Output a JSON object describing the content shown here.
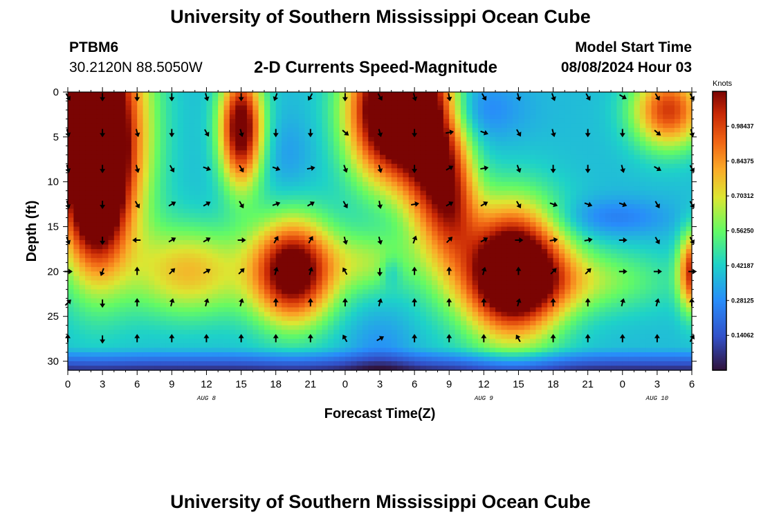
{
  "header": {
    "title": "University of Southern Mississippi Ocean Cube",
    "station_id": "PTBM6",
    "station_coords": "30.2120N  88.5050W",
    "subtitle": "2-D Currents Speed-Magnitude",
    "model_start_label": "Model Start Time",
    "model_start_value": "08/08/2024 Hour 03"
  },
  "footer": {
    "title": "University of Southern Mississippi Ocean Cube"
  },
  "chart_data": {
    "type": "heatmap",
    "xlabel": "Forecast Time(Z)",
    "ylabel": "Depth (ft)",
    "x_tick_labels": [
      "0",
      "3",
      "6",
      "9",
      "12",
      "15",
      "18",
      "21",
      "0",
      "3",
      "6",
      "9",
      "12",
      "15",
      "18",
      "21",
      "0",
      "3",
      "6"
    ],
    "x_range_hours": [
      0,
      54
    ],
    "date_labels": [
      {
        "text": "AUG 8",
        "at_hour": 12
      },
      {
        "text": "AUG 9",
        "at_hour": 36
      },
      {
        "text": "AUG 10",
        "at_hour": 51
      }
    ],
    "y_ticks": [
      0,
      5,
      10,
      15,
      20,
      25,
      30
    ],
    "ylim": [
      0,
      31
    ],
    "colorbar": {
      "title": "Knots",
      "tick_labels": [
        "0.98437",
        "0.84375",
        "0.70312",
        "0.56250",
        "0.42187",
        "0.28125",
        "0.14062"
      ],
      "range": [
        0,
        1.125
      ]
    },
    "speed_hotspots": [
      {
        "t": 2.5,
        "d": 4,
        "sx": 2.8,
        "sy": 9,
        "v": 0.95
      },
      {
        "t": 2.5,
        "d": 12,
        "sx": 1.8,
        "sy": 6,
        "v": 0.45
      },
      {
        "t": 15,
        "d": 4,
        "sx": 1.3,
        "sy": 4.5,
        "v": 0.75
      },
      {
        "t": 19.5,
        "d": 20,
        "sx": 2.5,
        "sy": 4,
        "v": 0.78
      },
      {
        "t": 10.5,
        "d": 20,
        "sx": 3.5,
        "sy": 3.5,
        "v": 0.35
      },
      {
        "t": 26,
        "d": 19,
        "sx": 2.5,
        "sy": 2.5,
        "v": 0.2
      },
      {
        "t": 28,
        "d": 2,
        "sx": 2.6,
        "sy": 5.5,
        "v": 0.95
      },
      {
        "t": 31.5,
        "d": 6,
        "sx": 1.8,
        "sy": 8,
        "v": 0.55
      },
      {
        "t": 33.5,
        "d": 12,
        "sx": 1.5,
        "sy": 5,
        "v": 0.35
      },
      {
        "t": 38.5,
        "d": 20,
        "sx": 3,
        "sy": 5,
        "v": 0.95
      },
      {
        "t": 44,
        "d": 21,
        "sx": 5.5,
        "sy": 2.5,
        "v": 0.22
      },
      {
        "t": 52,
        "d": 2,
        "sx": 2.2,
        "sy": 3,
        "v": 0.55
      },
      {
        "t": 54,
        "d": 20,
        "sx": 0.8,
        "sy": 3,
        "v": 0.55
      },
      {
        "t": 35,
        "d": 2,
        "sx": 3,
        "sy": 2.5,
        "v": -0.12
      },
      {
        "t": 47,
        "d": 14,
        "sx": 3.5,
        "sy": 1.5,
        "v": -0.12
      },
      {
        "t": 19,
        "d": 7,
        "sx": 1.5,
        "sy": 3,
        "v": -0.06
      },
      {
        "t": 27,
        "d": 29,
        "sx": 2,
        "sy": 3,
        "v": -0.08
      },
      {
        "t": 28,
        "d": 20,
        "sx": 0.6,
        "sy": 1.2,
        "v": -0.1
      }
    ],
    "speed_base": 0.34,
    "arrow_times": [
      0,
      3,
      6,
      9,
      12,
      15,
      18,
      21,
      24,
      27,
      30,
      33,
      36,
      39,
      42,
      45,
      48,
      51,
      54
    ],
    "arrow_depths": [
      0.5,
      4.5,
      8.5,
      12.5,
      16.5,
      20,
      23.5,
      27.5
    ],
    "arrow_directions_deg": [
      [
        150,
        180,
        180,
        180,
        165,
        180,
        200,
        210,
        180,
        150,
        165,
        170,
        150,
        165,
        160,
        150,
        120,
        150,
        150
      ],
      [
        165,
        180,
        165,
        180,
        150,
        165,
        180,
        180,
        130,
        165,
        180,
        80,
        110,
        150,
        165,
        180,
        180,
        130,
        165
      ],
      [
        165,
        180,
        165,
        150,
        110,
        150,
        110,
        80,
        160,
        165,
        180,
        60,
        80,
        160,
        180,
        180,
        165,
        120,
        150
      ],
      [
        165,
        180,
        150,
        60,
        60,
        150,
        70,
        60,
        150,
        170,
        80,
        60,
        60,
        150,
        110,
        110,
        110,
        150,
        150
      ],
      [
        160,
        180,
        270,
        60,
        60,
        90,
        30,
        30,
        165,
        165,
        20,
        45,
        60,
        90,
        80,
        80,
        90,
        150,
        150
      ],
      [
        90,
        200,
        0,
        45,
        60,
        45,
        15,
        15,
        330,
        180,
        0,
        0,
        15,
        0,
        45,
        45,
        90,
        90,
        90
      ],
      [
        45,
        180,
        0,
        15,
        15,
        15,
        0,
        0,
        0,
        15,
        0,
        0,
        0,
        15,
        0,
        0,
        15,
        15,
        0
      ],
      [
        0,
        180,
        0,
        0,
        0,
        0,
        0,
        0,
        330,
        60,
        0,
        0,
        0,
        330,
        0,
        0,
        0,
        0,
        30
      ]
    ]
  }
}
